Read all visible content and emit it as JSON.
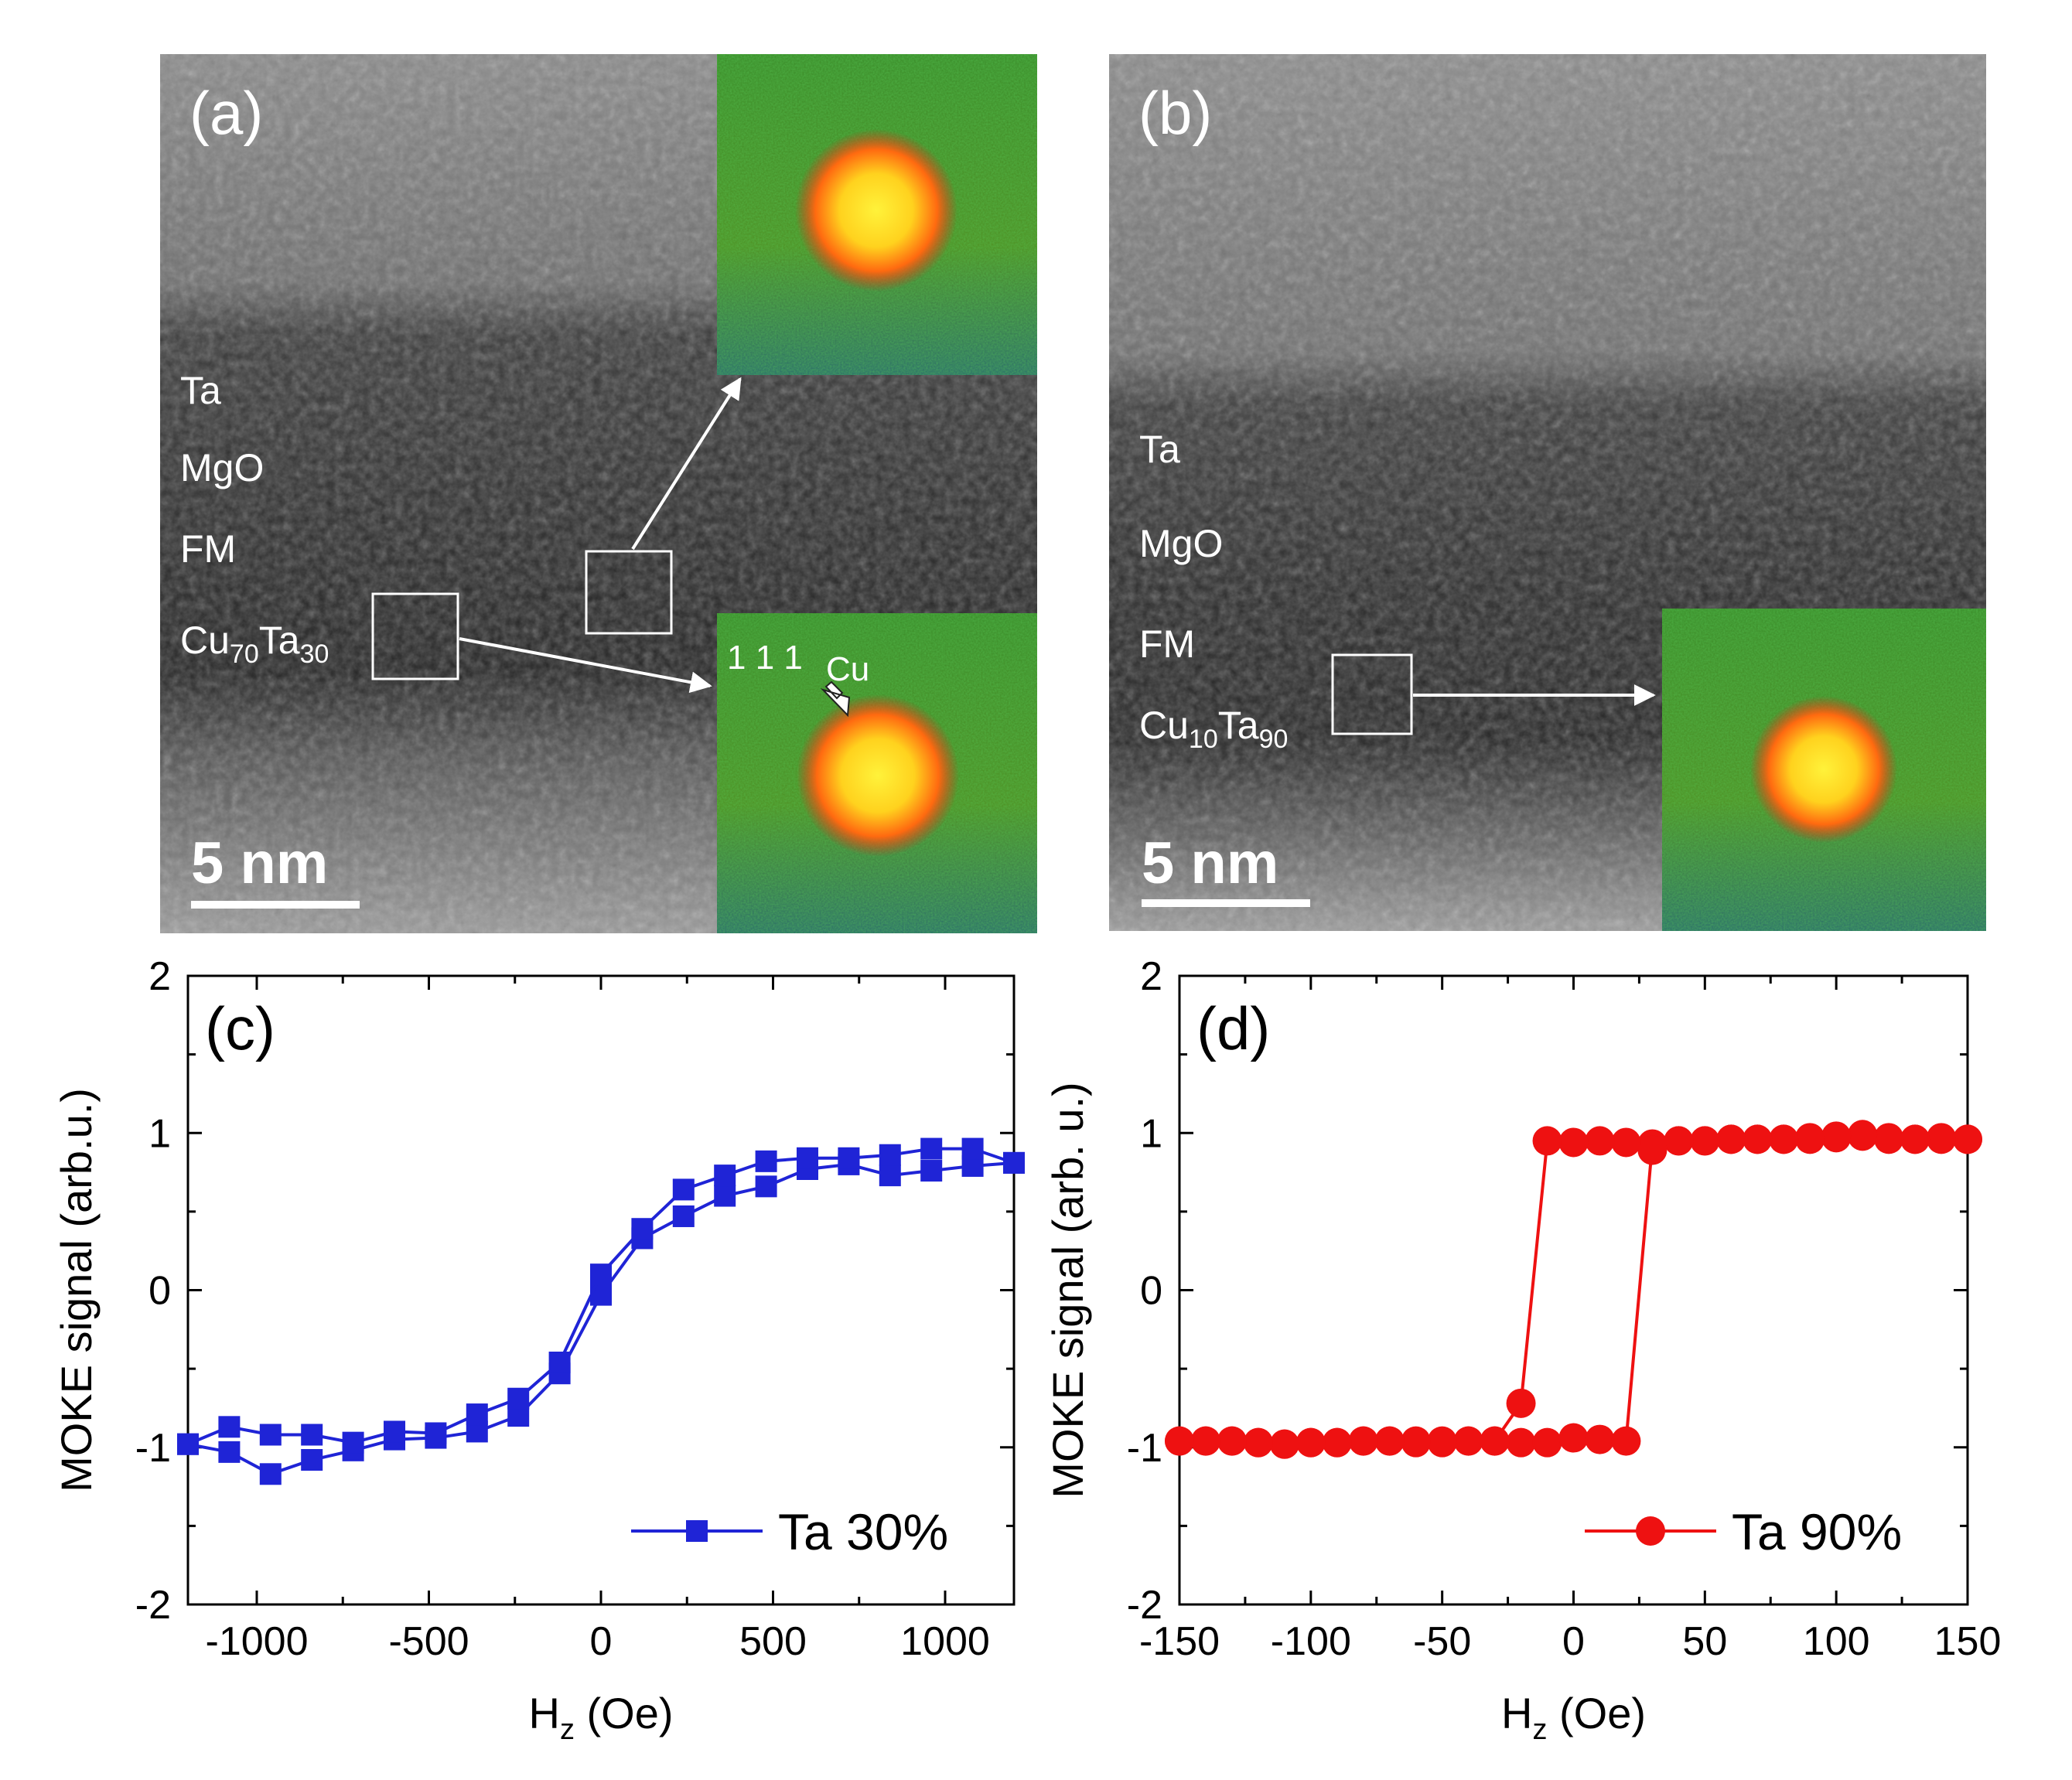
{
  "panels": {
    "a": {
      "label": "(a)",
      "layers": [
        {
          "text": "Ta"
        },
        {
          "text": "MgO"
        },
        {
          "text": "FM"
        },
        {
          "text": "Cu",
          "sub1": "70",
          "text2": "Ta",
          "sub2": "30"
        }
      ],
      "scale_bar": "5 nm",
      "fft_annotation": "1 1 1",
      "fft_annotation_element": "Cu"
    },
    "b": {
      "label": "(b)",
      "layers": [
        {
          "text": "Ta"
        },
        {
          "text": "MgO"
        },
        {
          "text": "FM"
        },
        {
          "text": "Cu",
          "sub1": "10",
          "text2": "Ta",
          "sub2": "90"
        }
      ],
      "scale_bar": "5 nm"
    }
  },
  "colors": {
    "series_c": "#1f24d6",
    "series_d": "#ee1111"
  },
  "chart_data": [
    {
      "panel": "(c)",
      "type": "line",
      "xlabel_main": "H",
      "xlabel_sub": "z",
      "xlabel_rest": " (Oe)",
      "ylabel": "MOKE signal (arb.u.)",
      "xlim": [
        -1200,
        1200
      ],
      "ylim": [
        -2,
        2
      ],
      "xticks": [
        -1000,
        -500,
        0,
        500,
        1000
      ],
      "yticks": [
        -2,
        -1,
        0,
        1,
        2
      ],
      "legend": "top-right",
      "legend_placement": "bottom-right",
      "marker": "square",
      "series": [
        {
          "name": "Ta 30%",
          "x": [
            -1200,
            -1080,
            -960,
            -840,
            -720,
            -600,
            -480,
            -360,
            -240,
            -120,
            0,
            120,
            240,
            360,
            480,
            600,
            720,
            840,
            960,
            1080,
            1200
          ],
          "y": [
            -0.98,
            -1.03,
            -1.17,
            -1.08,
            -1.02,
            -0.95,
            -0.94,
            -0.9,
            -0.8,
            -0.53,
            -0.03,
            0.33,
            0.47,
            0.6,
            0.66,
            0.77,
            0.8,
            0.73,
            0.76,
            0.79,
            0.81
          ]
        },
        {
          "name": "",
          "x": [
            1200,
            1080,
            960,
            840,
            720,
            600,
            480,
            360,
            240,
            120,
            0,
            -120,
            -240,
            -360,
            -480,
            -600,
            -720,
            -840,
            -960,
            -1080,
            -1200
          ],
          "y": [
            0.81,
            0.9,
            0.9,
            0.86,
            0.84,
            0.84,
            0.82,
            0.73,
            0.64,
            0.39,
            0.1,
            -0.46,
            -0.69,
            -0.79,
            -0.91,
            -0.9,
            -0.97,
            -0.92,
            -0.92,
            -0.87,
            -0.98
          ]
        }
      ]
    },
    {
      "panel": "(d)",
      "type": "line",
      "xlabel_main": "H",
      "xlabel_sub": "z",
      "xlabel_rest": " (Oe)",
      "ylabel": "MOKE signal (arb. u.)",
      "xlim": [
        -150,
        150
      ],
      "ylim": [
        -2,
        2
      ],
      "xticks": [
        -150,
        -100,
        -50,
        0,
        50,
        100,
        150
      ],
      "yticks": [
        -2,
        -1,
        0,
        1,
        2
      ],
      "legend_placement": "bottom-right",
      "marker": "circle",
      "series": [
        {
          "name": "Ta 90%",
          "x": [
            -150,
            -140,
            -130,
            -120,
            -110,
            -100,
            -90,
            -80,
            -70,
            -60,
            -50,
            -40,
            -30,
            -20,
            -10,
            0,
            10,
            20,
            30,
            40,
            50,
            60,
            70,
            80,
            90,
            100,
            110,
            120,
            130,
            140,
            150
          ],
          "y": [
            -0.96,
            -0.96,
            -0.96,
            -0.97,
            -0.98,
            -0.97,
            -0.97,
            -0.96,
            -0.96,
            -0.97,
            -0.97,
            -0.96,
            -0.96,
            -0.97,
            -0.97,
            -0.94,
            -0.95,
            -0.96,
            0.93,
            0.95,
            0.95,
            0.96,
            0.96,
            0.96,
            0.97,
            0.97,
            0.98,
            0.97,
            0.96,
            0.97,
            0.96
          ]
        },
        {
          "name": "",
          "x": [
            150,
            140,
            130,
            120,
            110,
            100,
            90,
            80,
            70,
            60,
            50,
            40,
            30,
            20,
            10,
            0,
            -10,
            -20,
            -30,
            -40,
            -50,
            -60,
            -70,
            -80,
            -90,
            -100,
            -110,
            -120,
            -130,
            -140,
            -150
          ],
          "y": [
            0.96,
            0.96,
            0.96,
            0.96,
            0.99,
            0.98,
            0.96,
            0.96,
            0.96,
            0.96,
            0.95,
            0.95,
            0.89,
            0.94,
            0.95,
            0.94,
            0.95,
            -0.72,
            -0.96,
            -0.96,
            -0.96,
            -0.96,
            -0.96,
            -0.96,
            -0.97,
            -0.97,
            -0.98,
            -0.97,
            -0.96,
            -0.96,
            -0.96
          ]
        }
      ]
    }
  ]
}
